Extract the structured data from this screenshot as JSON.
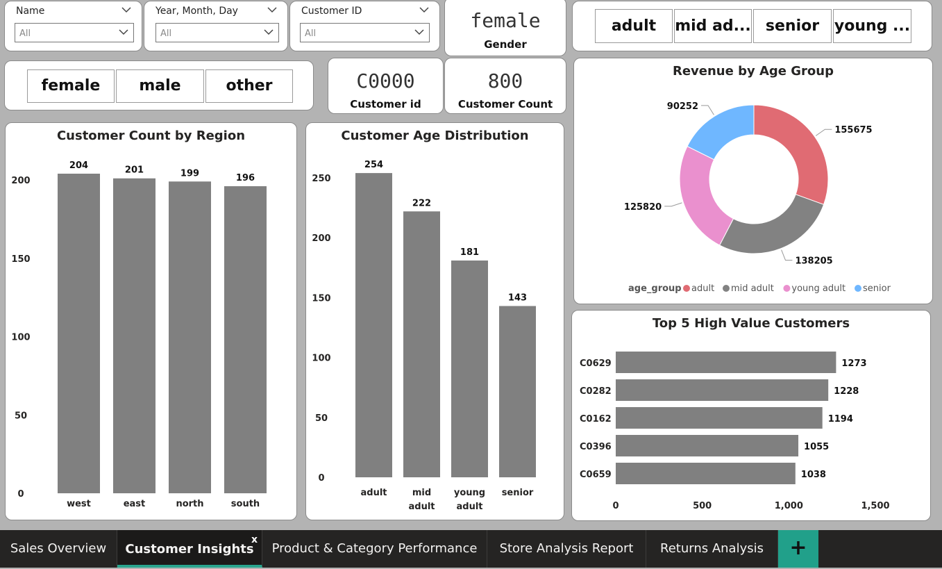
{
  "slicers": {
    "name": {
      "label": "Name",
      "value": "All"
    },
    "date": {
      "label": "Year, Month, Day",
      "value": "All"
    },
    "customer_id": {
      "label": "Customer ID",
      "value": "All"
    }
  },
  "gender_card": {
    "value": "female",
    "label": "Gender"
  },
  "age_buttons": [
    "adult",
    "mid ad...",
    "senior",
    "young ..."
  ],
  "gender_buttons": [
    "female",
    "male",
    "other"
  ],
  "customer_id_card": {
    "value": "C0000",
    "label": "Customer id"
  },
  "customer_count_card": {
    "value": "800",
    "label": "Customer Count"
  },
  "colors": {
    "bar": "#808080",
    "adult": "#e06b73",
    "mid_adult": "#828282",
    "young_adult": "#ea90ce",
    "senior": "#6fb7ff",
    "accent": "#21a08a"
  },
  "chart_data": [
    {
      "type": "bar",
      "title": "Customer Count by Region",
      "categories": [
        "west",
        "east",
        "north",
        "south"
      ],
      "values": [
        204,
        201,
        199,
        196
      ],
      "yticks": [
        "0",
        "50",
        "100",
        "150",
        "200"
      ],
      "ylim": [
        0,
        210
      ]
    },
    {
      "type": "bar",
      "title": "Customer Age Distribution",
      "categories": [
        [
          "adult"
        ],
        [
          "mid",
          "adult"
        ],
        [
          "young",
          "adult"
        ],
        [
          "senior"
        ]
      ],
      "values": [
        254,
        222,
        181,
        143
      ],
      "yticks": [
        "0",
        "50",
        "100",
        "150",
        "200",
        "250"
      ],
      "ylim": [
        0,
        260
      ]
    },
    {
      "type": "pie",
      "title": "Revenue by Age Group",
      "legend_title": "age_group",
      "slices": [
        {
          "name": "adult",
          "value": 155675,
          "color": "#e06b73"
        },
        {
          "name": "mid adult",
          "value": 138205,
          "color": "#828282"
        },
        {
          "name": "young adult",
          "value": 125820,
          "color": "#ea90ce"
        },
        {
          "name": "senior",
          "value": 90252,
          "color": "#6fb7ff"
        }
      ],
      "slice_labels": [
        "155675",
        "138205",
        "125820",
        "90252"
      ]
    },
    {
      "type": "bar",
      "orientation": "horizontal",
      "title": "Top 5 High Value Customers",
      "categories": [
        "C0629",
        "C0282",
        "C0162",
        "C0396",
        "C0659"
      ],
      "values": [
        1273,
        1228,
        1194,
        1055,
        1038
      ],
      "value_labels": [
        "1273",
        "1228",
        "1194",
        "1055",
        "1038"
      ],
      "xticks": [
        "0",
        "500",
        "1,000",
        "1,500"
      ],
      "xlim": [
        0,
        1500
      ]
    }
  ],
  "tabs": [
    {
      "label": "Sales Overview",
      "active": false
    },
    {
      "label": "Customer Insights",
      "active": true
    },
    {
      "label": "Product & Category Performance",
      "active": false
    },
    {
      "label": "Store Analysis Report",
      "active": false
    },
    {
      "label": "Returns Analysis",
      "active": false
    }
  ],
  "tab_close_label": "x",
  "add_tab_label": "+"
}
